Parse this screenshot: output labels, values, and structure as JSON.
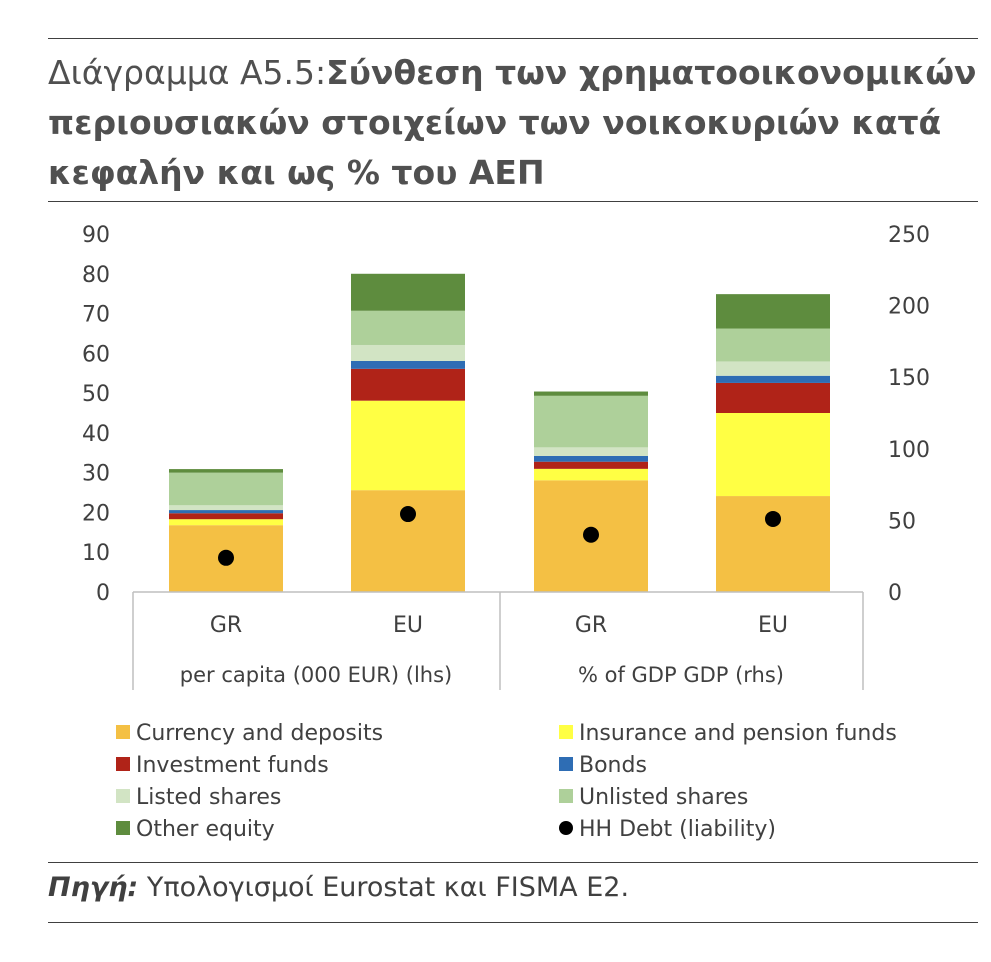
{
  "title": {
    "prefix": "Διάγραμμα Α5.5:",
    "line1": "Σύνθεση των χρηματοοικονομικών",
    "line2": "περιουσιακών στοιχείων των νοικοκυριών κατά",
    "line3": "κεφαλήν και ως % του ΑΕΠ"
  },
  "source": {
    "label": "Πηγή:",
    "text": "Υπολογισμοί Eurostat και FISMA E2."
  },
  "chart_data": {
    "type": "bar",
    "stacked": true,
    "categories": [
      "GR",
      "EU",
      "GR",
      "EU"
    ],
    "groups": [
      {
        "label": "per capita (000 EUR) (lhs)",
        "categories": [
          "GR",
          "EU"
        ],
        "axis": "left"
      },
      {
        "label": "% of GDP GDP (rhs)",
        "categories": [
          "GR",
          "EU"
        ],
        "axis": "right"
      }
    ],
    "left_axis": {
      "ylim": [
        0,
        90
      ],
      "ticks": [
        "0",
        "10",
        "20",
        "30",
        "40",
        "50",
        "60",
        "70",
        "80",
        "90"
      ]
    },
    "right_axis": {
      "ylim": [
        0,
        250
      ],
      "ticks": [
        "0",
        "50",
        "100",
        "150",
        "200",
        "250"
      ]
    },
    "series": [
      {
        "name": "Currency and deposits",
        "color": "#F4C044",
        "values": [
          16.8,
          25.6,
          78,
          67
        ]
      },
      {
        "name": "Insurance and pension funds",
        "color": "#FFFF44",
        "values": [
          1.5,
          22.5,
          8,
          58
        ]
      },
      {
        "name": "Investment funds",
        "color": "#B02318",
        "values": [
          1.5,
          8,
          5,
          21
        ]
      },
      {
        "name": "Bonds",
        "color": "#2E6DB4",
        "values": [
          0.8,
          2,
          4,
          5
        ]
      },
      {
        "name": "Listed shares",
        "color": "#D2E4C4",
        "values": [
          1.2,
          4,
          6,
          10
        ]
      },
      {
        "name": "Unlisted shares",
        "color": "#AED09A",
        "values": [
          8.2,
          8.6,
          36,
          23
        ]
      },
      {
        "name": "Other equity",
        "color": "#5E8C3E",
        "values": [
          0.9,
          9.3,
          3,
          24
        ]
      }
    ],
    "markers": {
      "name": "HH Debt (liability)",
      "color": "#000000",
      "values": [
        8.6,
        19.6,
        40,
        51
      ]
    },
    "legend": {
      "placement": "bottom",
      "columns": 2
    }
  }
}
